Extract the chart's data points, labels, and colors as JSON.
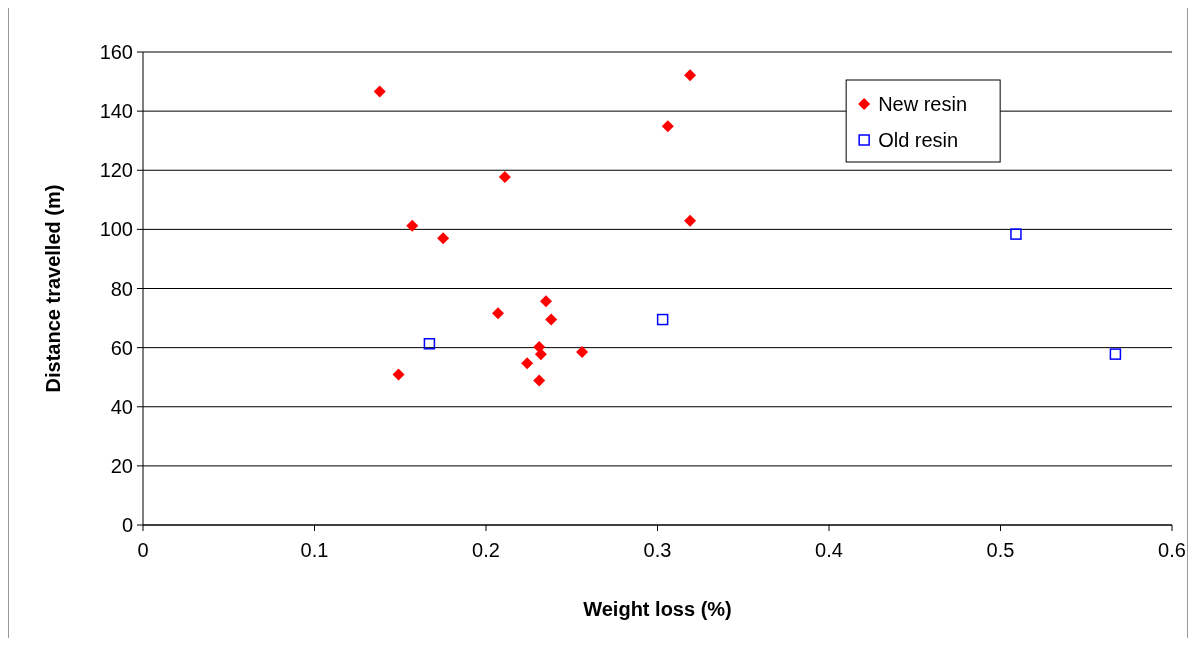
{
  "chart_data": {
    "type": "scatter",
    "xlabel": "Weight loss (%)",
    "ylabel": "Distance travelled (m)",
    "xlim": [
      0,
      0.6
    ],
    "xticks": [
      0,
      0.1,
      0.2,
      0.3,
      0.4,
      0.5,
      0.6
    ],
    "ylim": [
      0,
      160
    ],
    "yticks": [
      0,
      20,
      40,
      60,
      80,
      100,
      120,
      140,
      160
    ],
    "grid": "y",
    "legend": "top right",
    "series": [
      {
        "name": "New resin",
        "color": "#ff0000",
        "marker": "diamond",
        "x": [
          0.138,
          0.319,
          0.306,
          0.211,
          0.157,
          0.175,
          0.319,
          0.207,
          0.235,
          0.238,
          0.231,
          0.232,
          0.256,
          0.224,
          0.231,
          0.149
        ],
        "values": [
          146.6,
          152.1,
          134.9,
          117.7,
          101.2,
          97.0,
          102.9,
          71.6,
          75.7,
          69.5,
          60.2,
          57.8,
          58.5,
          54.7,
          48.9,
          50.9
        ]
      },
      {
        "name": "Old resin",
        "color": "#0000ff",
        "marker": "square",
        "x": [
          0.167,
          0.303,
          0.509,
          0.567
        ],
        "values": [
          61.3,
          69.5,
          98.4,
          57.8
        ]
      }
    ]
  }
}
